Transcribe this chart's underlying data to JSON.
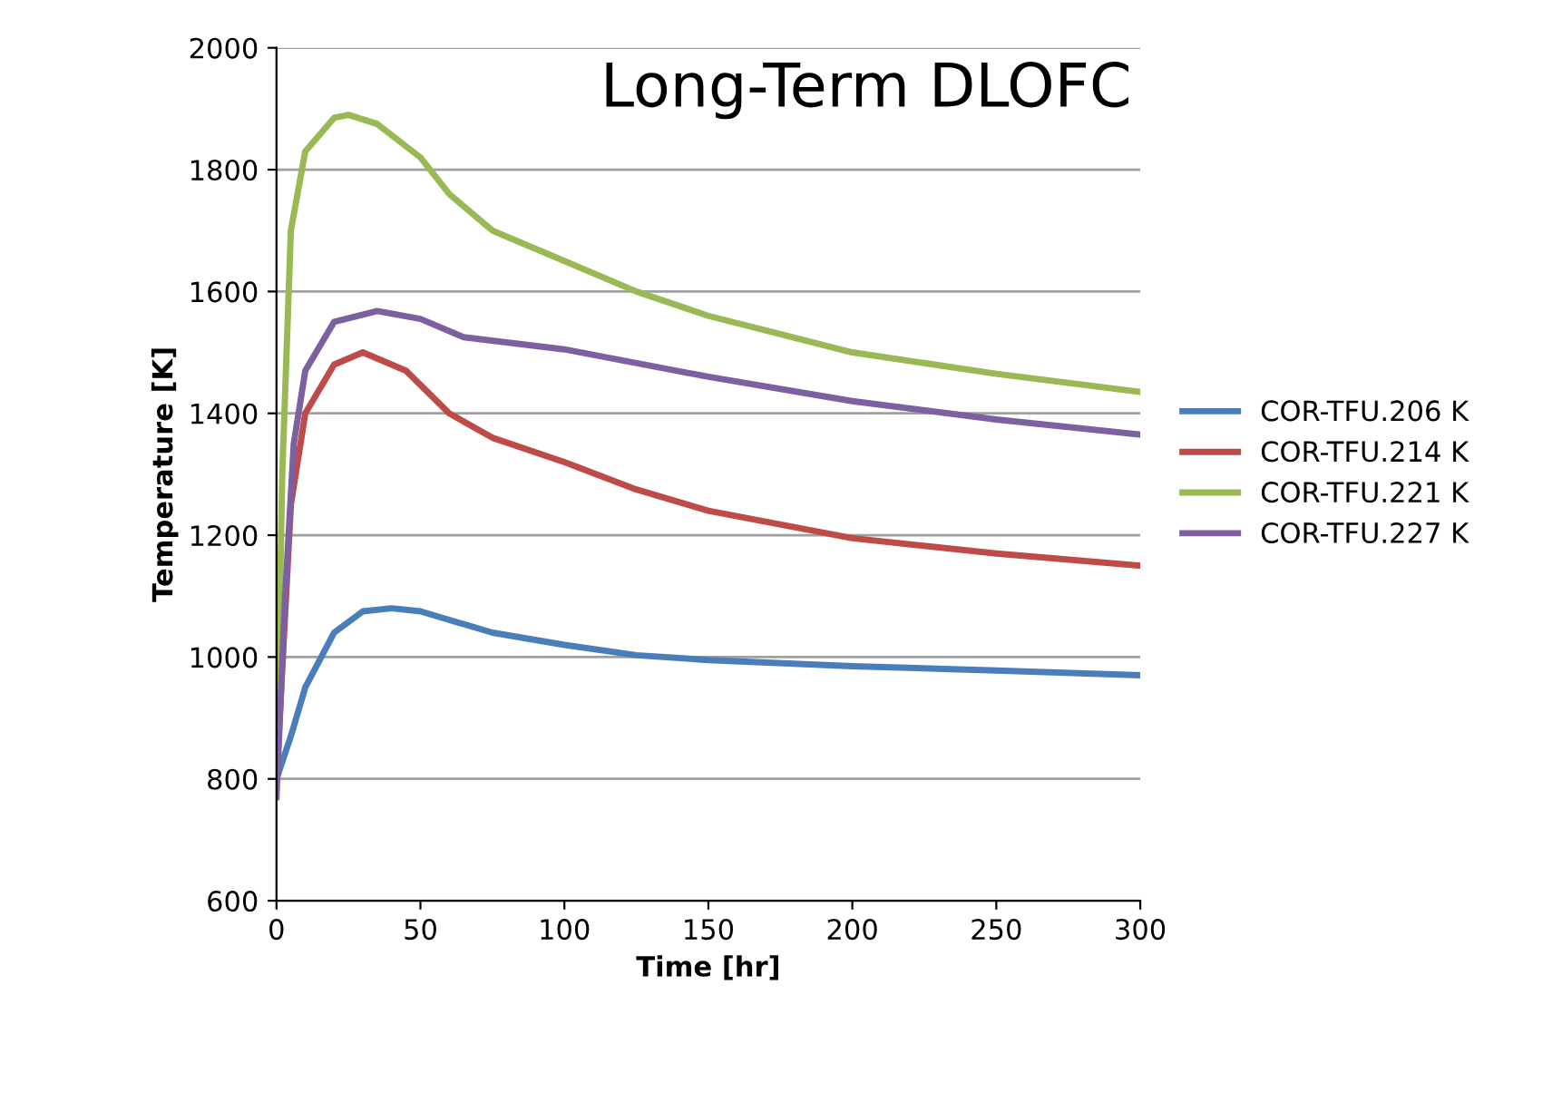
{
  "chart_data": {
    "type": "line",
    "title": "Long-Term DLOFC",
    "xlabel": "Time [hr]",
    "ylabel": "Temperature [K]",
    "xlim": [
      0,
      300
    ],
    "xticks": [
      0,
      50,
      100,
      150,
      200,
      250,
      300
    ],
    "ylim": [
      600,
      2000
    ],
    "yticks": [
      600,
      800,
      1000,
      1200,
      1400,
      1600,
      1800,
      2000
    ],
    "grid": "y",
    "legend": "right",
    "marker": "none",
    "line_style": "solid",
    "series": [
      {
        "name": "COR-TFU.206 K",
        "color": "#4a7ebb",
        "x": [
          0,
          5,
          10,
          20,
          30,
          40,
          50,
          75,
          100,
          125,
          150,
          200,
          250,
          300
        ],
        "values": [
          800,
          870,
          950,
          1040,
          1075,
          1080,
          1075,
          1040,
          1020,
          1003,
          995,
          985,
          978,
          970
        ]
      },
      {
        "name": "COR-TFU.214 K",
        "color": "#be4b48",
        "x": [
          0,
          5,
          10,
          20,
          30,
          45,
          60,
          75,
          100,
          125,
          150,
          200,
          250,
          300
        ],
        "values": [
          800,
          1250,
          1400,
          1480,
          1500,
          1470,
          1400,
          1360,
          1320,
          1275,
          1240,
          1195,
          1170,
          1150
        ]
      },
      {
        "name": "COR-TFU.221 K",
        "color": "#98b954",
        "x": [
          0,
          2,
          5,
          10,
          20,
          25,
          35,
          50,
          60,
          75,
          100,
          125,
          150,
          175,
          200,
          250,
          300
        ],
        "values": [
          800,
          1300,
          1700,
          1830,
          1885,
          1890,
          1875,
          1820,
          1760,
          1700,
          1650,
          1600,
          1560,
          1530,
          1500,
          1465,
          1435
        ]
      },
      {
        "name": "COR-TFU.227 K",
        "color": "#7d60a0",
        "x": [
          0,
          3,
          6,
          10,
          20,
          35,
          50,
          65,
          100,
          150,
          200,
          250,
          300
        ],
        "values": [
          770,
          1100,
          1350,
          1470,
          1550,
          1568,
          1555,
          1525,
          1505,
          1460,
          1420,
          1390,
          1365
        ]
      }
    ]
  }
}
